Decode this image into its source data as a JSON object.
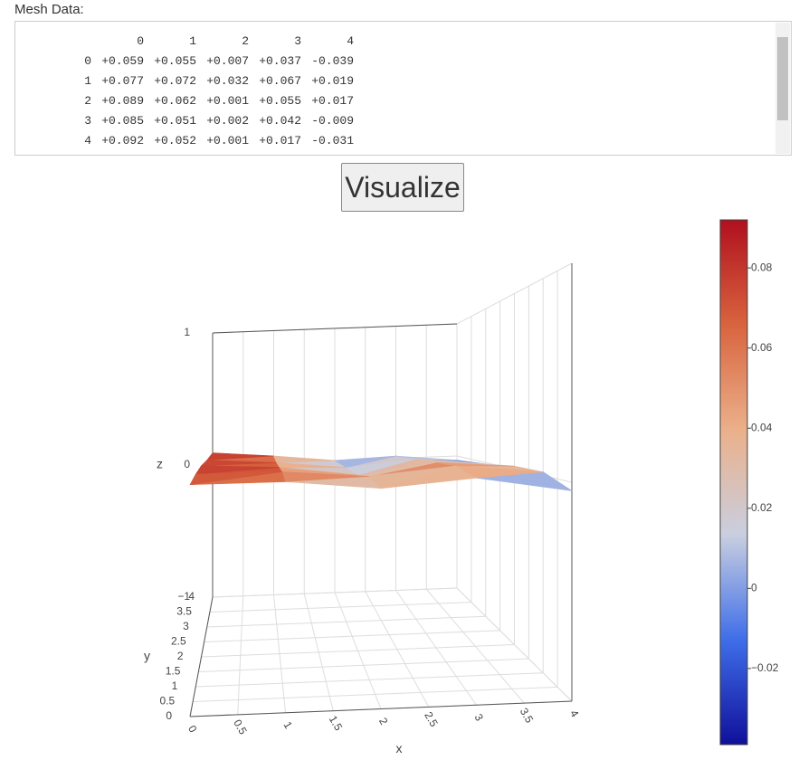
{
  "label": "Mesh Data:",
  "mesh_table": {
    "columns": [
      "0",
      "1",
      "2",
      "3",
      "4"
    ],
    "rows": [
      {
        "index": "0",
        "cells": [
          "+0.059",
          "+0.055",
          "+0.007",
          "+0.037",
          "-0.039"
        ]
      },
      {
        "index": "1",
        "cells": [
          "+0.077",
          "+0.072",
          "+0.032",
          "+0.067",
          "+0.019"
        ]
      },
      {
        "index": "2",
        "cells": [
          "+0.089",
          "+0.062",
          "+0.001",
          "+0.055",
          "+0.017"
        ]
      },
      {
        "index": "3",
        "cells": [
          "+0.085",
          "+0.051",
          "+0.002",
          "+0.042",
          "-0.009"
        ]
      },
      {
        "index": "4",
        "cells": [
          "+0.092",
          "+0.052",
          "+0.001",
          "+0.017",
          "-0.031"
        ]
      }
    ]
  },
  "button": "Visualize",
  "chart_data": {
    "type": "surface",
    "x_label": "x",
    "y_label": "y",
    "z_label": "z",
    "x": [
      0,
      1,
      2,
      3,
      4
    ],
    "y": [
      0,
      1,
      2,
      3,
      4
    ],
    "z": [
      [
        0.059,
        0.055,
        0.007,
        0.037,
        -0.039
      ],
      [
        0.077,
        0.072,
        0.032,
        0.067,
        0.019
      ],
      [
        0.089,
        0.062,
        0.001,
        0.055,
        0.017
      ],
      [
        0.085,
        0.051,
        0.002,
        0.042,
        -0.009
      ],
      [
        0.092,
        0.052,
        0.001,
        0.017,
        -0.031
      ]
    ],
    "xlim": [
      0,
      4
    ],
    "ylim": [
      0,
      4
    ],
    "zlim": [
      -1,
      1
    ],
    "xticks": [
      0,
      0.5,
      1,
      1.5,
      2,
      2.5,
      3,
      3.5,
      4
    ],
    "yticks": [
      0,
      0.5,
      1,
      1.5,
      2,
      2.5,
      3,
      3.5,
      4
    ],
    "zticks": [
      {
        "value": -1,
        "label": "−1"
      },
      0,
      1
    ],
    "clim": [
      -0.039,
      0.092
    ],
    "colorscale": [
      "#10109a",
      "#3f6ee8",
      "#c9cfe0",
      "#ebb08a",
      "#d8643f",
      "#b0101e"
    ],
    "cticks": [
      {
        "value": -0.02,
        "label": "−0.02"
      },
      0,
      0.02,
      0.04,
      0.06,
      0.08
    ]
  }
}
